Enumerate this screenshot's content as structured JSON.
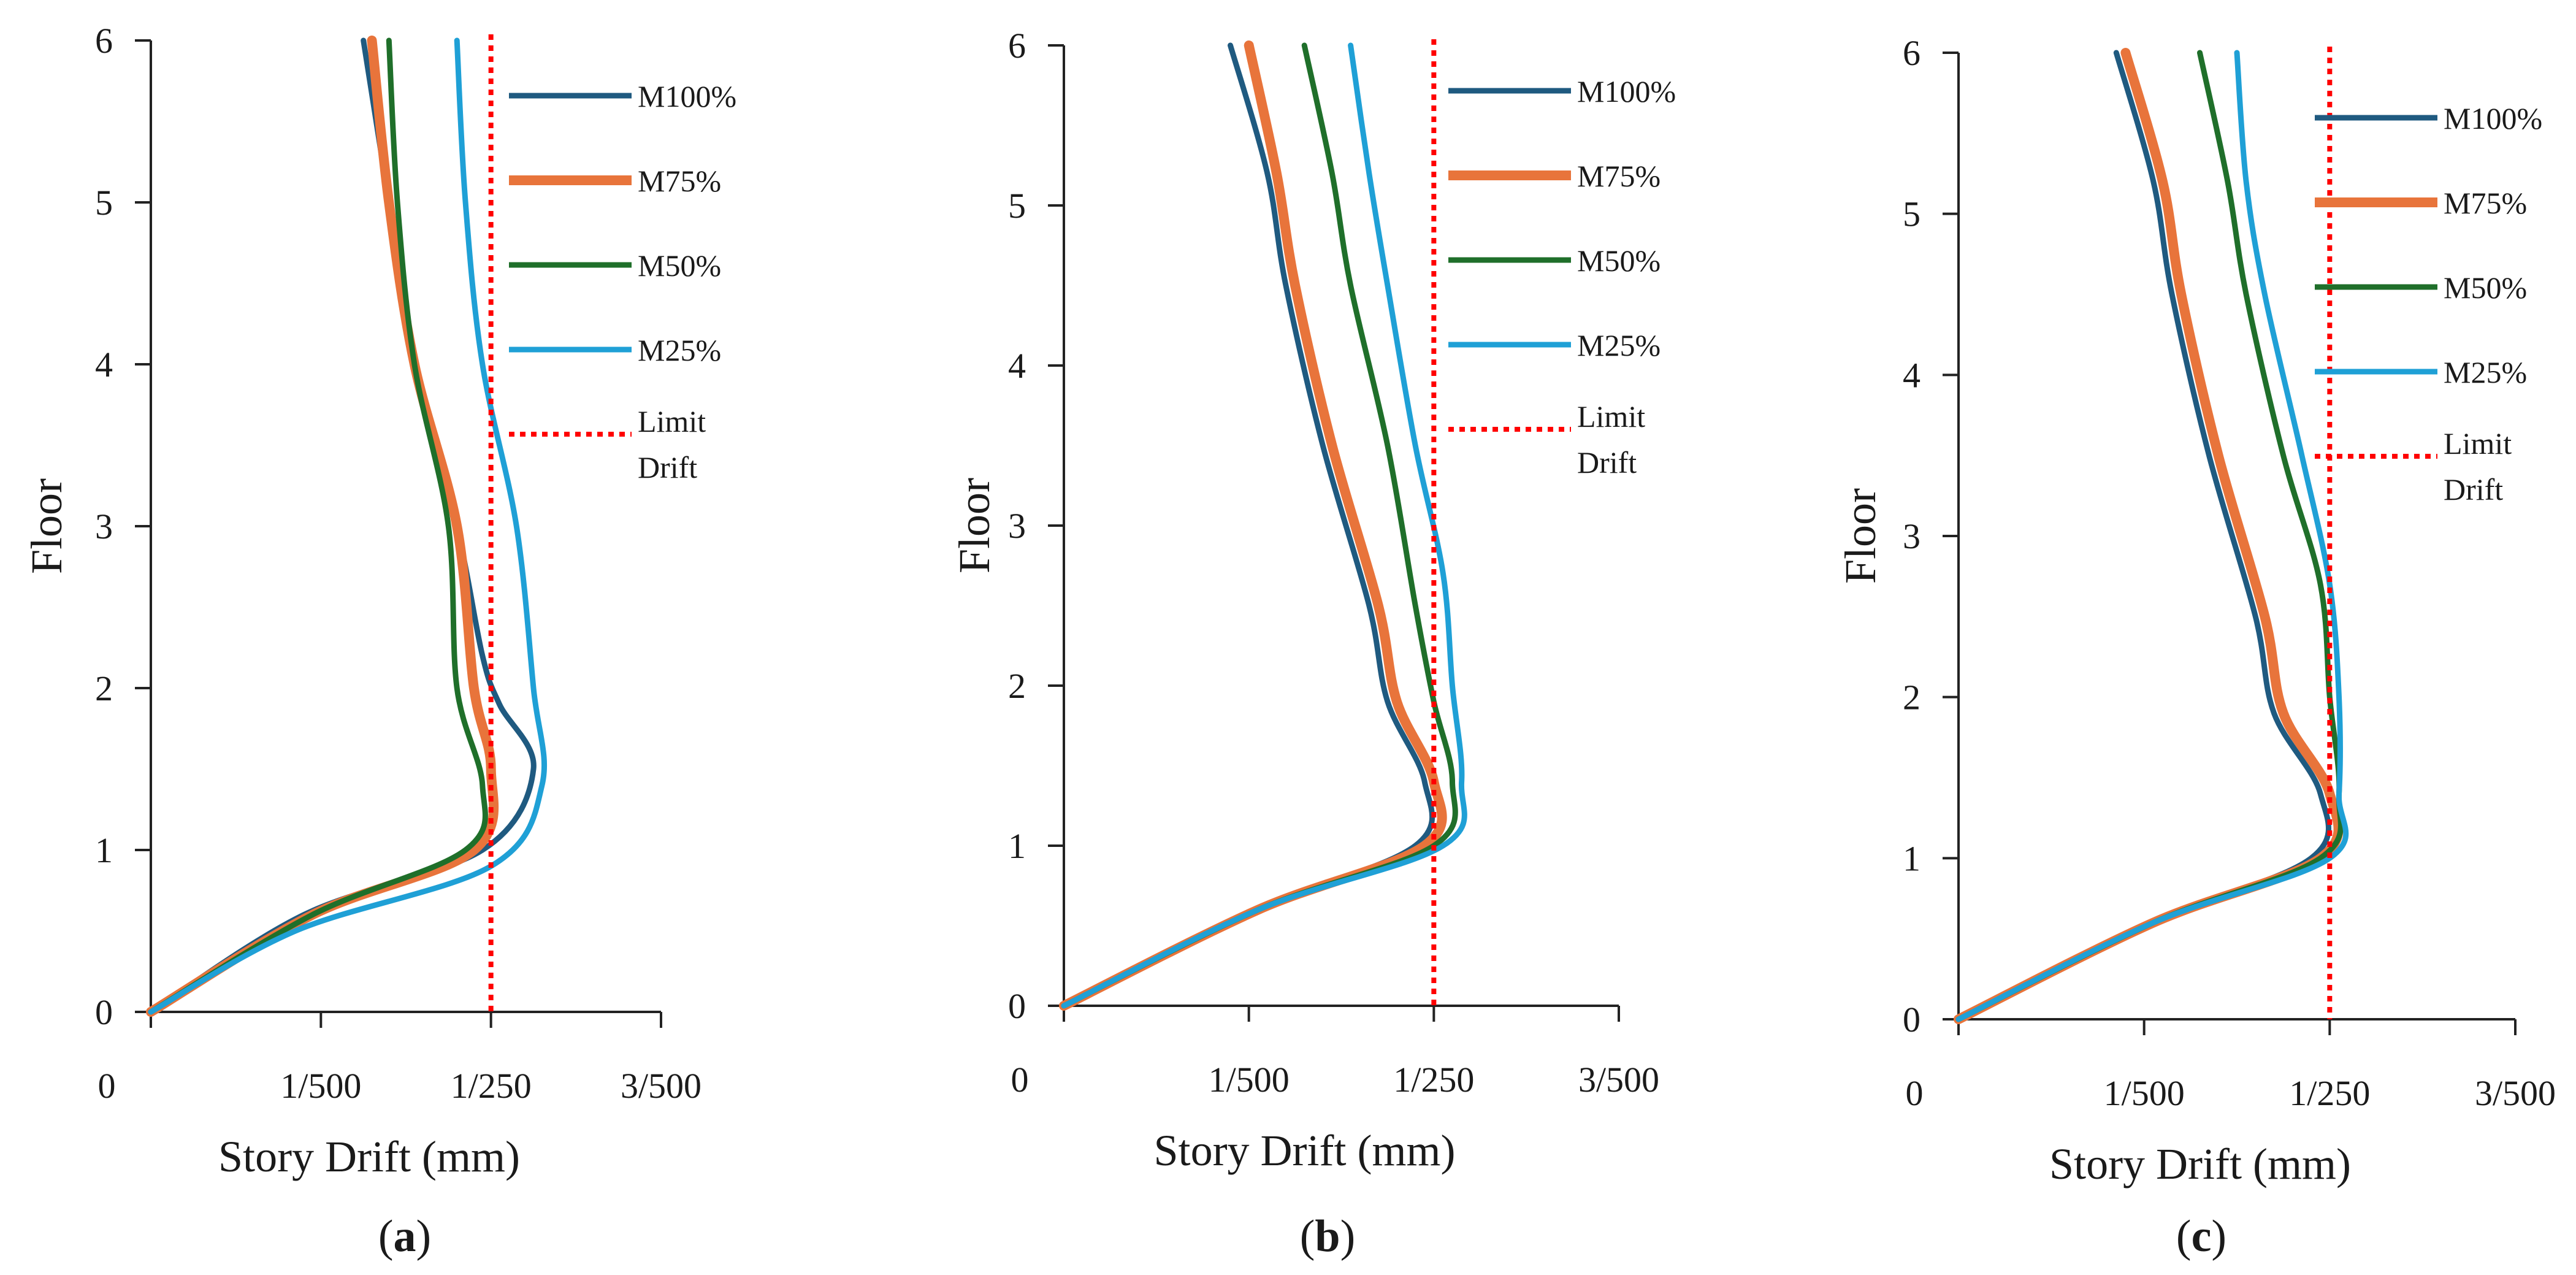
{
  "chart_data": [
    {
      "type": "line",
      "panel": "a",
      "caption": {
        "open": "(",
        "letter": "a",
        "close": ")"
      },
      "xlabel": "Story Drift (mm)",
      "ylabel": "Floor",
      "xlim": [
        0,
        0.006
      ],
      "ylim": [
        0,
        6
      ],
      "x_ticks": [
        0,
        0.002,
        0.004,
        0.006
      ],
      "x_tick_labels": [
        "0",
        "1/500",
        "1/250",
        "3/500"
      ],
      "y_ticks": [
        0,
        1,
        2,
        3,
        4,
        5,
        6
      ],
      "y_tick_labels": [
        "0",
        "1",
        "2",
        "3",
        "4",
        "5",
        "6"
      ],
      "grid": false,
      "legend_position": "right",
      "limit_drift": {
        "name": "Limit Drift",
        "name_lines": [
          "Limit",
          "Drift"
        ],
        "x": 0.004,
        "color": "#ff0000",
        "style": "dotted"
      },
      "series": [
        {
          "name": "M100%",
          "color": "#1f5a80",
          "width": 9,
          "points": [
            [
              0,
              0
            ],
            [
              0.0018,
              0.6
            ],
            [
              0.0039,
              1.0
            ],
            [
              0.0045,
              1.5
            ],
            [
              0.0041,
              1.9
            ],
            [
              0.0039,
              2.2
            ],
            [
              0.0036,
              3.0
            ],
            [
              0.0031,
              4.0
            ],
            [
              0.0028,
              5.0
            ],
            [
              0.0025,
              6.0
            ]
          ]
        },
        {
          "name": "M75%",
          "color": "#e8743b",
          "width": 16,
          "points": [
            [
              0,
              0
            ],
            [
              0.0019,
              0.6
            ],
            [
              0.0038,
              1.0
            ],
            [
              0.004,
              1.5
            ],
            [
              0.0038,
              2.0
            ],
            [
              0.0036,
              3.0
            ],
            [
              0.0031,
              4.0
            ],
            [
              0.0028,
              5.0
            ],
            [
              0.0026,
              6.0
            ]
          ]
        },
        {
          "name": "M50%",
          "color": "#1f6f2a",
          "width": 9,
          "points": [
            [
              0,
              0
            ],
            [
              0.0019,
              0.6
            ],
            [
              0.0037,
              1.0
            ],
            [
              0.0039,
              1.4
            ],
            [
              0.0036,
              2.0
            ],
            [
              0.0035,
              3.0
            ],
            [
              0.0031,
              4.0
            ],
            [
              0.0029,
              5.0
            ],
            [
              0.0028,
              6.0
            ]
          ]
        },
        {
          "name": "M25%",
          "color": "#1fa0d6",
          "width": 9,
          "points": [
            [
              0,
              0
            ],
            [
              0.0017,
              0.5
            ],
            [
              0.004,
              0.9
            ],
            [
              0.0046,
              1.4
            ],
            [
              0.0045,
              2.0
            ],
            [
              0.0043,
              3.0
            ],
            [
              0.0039,
              4.0
            ],
            [
              0.0037,
              5.0
            ],
            [
              0.0036,
              6.0
            ]
          ]
        }
      ]
    },
    {
      "type": "line",
      "panel": "b",
      "caption": {
        "open": "(",
        "letter": "b",
        "close": ")"
      },
      "xlabel": "Story Drift (mm)",
      "ylabel": "Floor",
      "xlim": [
        0,
        0.006
      ],
      "ylim": [
        0,
        6
      ],
      "x_ticks": [
        0,
        0.002,
        0.004,
        0.006
      ],
      "x_tick_labels": [
        "0",
        "1/500",
        "1/250",
        "3/500"
      ],
      "y_ticks": [
        0,
        1,
        2,
        3,
        4,
        5,
        6
      ],
      "y_tick_labels": [
        "0",
        "1",
        "2",
        "3",
        "4",
        "5",
        "6"
      ],
      "grid": false,
      "legend_position": "right",
      "limit_drift": {
        "name": "Limit Drift",
        "name_lines": [
          "Limit",
          "Drift"
        ],
        "x": 0.004,
        "color": "#ff0000",
        "style": "dotted"
      },
      "series": [
        {
          "name": "M100%",
          "color": "#1f5a80",
          "width": 9,
          "points": [
            [
              0,
              0
            ],
            [
              0.0021,
              0.6
            ],
            [
              0.0038,
              1.0
            ],
            [
              0.0039,
              1.4
            ],
            [
              0.0035,
              1.9
            ],
            [
              0.0033,
              2.5
            ],
            [
              0.0028,
              3.5
            ],
            [
              0.0024,
              4.5
            ],
            [
              0.0022,
              5.2
            ],
            [
              0.0018,
              6.0
            ]
          ]
        },
        {
          "name": "M75%",
          "color": "#e8743b",
          "width": 16,
          "points": [
            [
              0,
              0
            ],
            [
              0.0021,
              0.6
            ],
            [
              0.0039,
              1.0
            ],
            [
              0.004,
              1.4
            ],
            [
              0.0036,
              1.9
            ],
            [
              0.0034,
              2.5
            ],
            [
              0.0029,
              3.5
            ],
            [
              0.0025,
              4.5
            ],
            [
              0.0023,
              5.2
            ],
            [
              0.002,
              6.0
            ]
          ]
        },
        {
          "name": "M50%",
          "color": "#1f6f2a",
          "width": 9,
          "points": [
            [
              0,
              0
            ],
            [
              0.0021,
              0.6
            ],
            [
              0.004,
              1.0
            ],
            [
              0.0042,
              1.4
            ],
            [
              0.004,
              1.9
            ],
            [
              0.0038,
              2.5
            ],
            [
              0.0035,
              3.5
            ],
            [
              0.0031,
              4.5
            ],
            [
              0.0029,
              5.2
            ],
            [
              0.0026,
              6.0
            ]
          ]
        },
        {
          "name": "M25%",
          "color": "#1fa0d6",
          "width": 9,
          "points": [
            [
              0,
              0
            ],
            [
              0.0021,
              0.6
            ],
            [
              0.0041,
              1.0
            ],
            [
              0.0043,
              1.4
            ],
            [
              0.0042,
              2.0
            ],
            [
              0.0041,
              2.7
            ],
            [
              0.0038,
              3.5
            ],
            [
              0.0035,
              4.5
            ],
            [
              0.0033,
              5.2
            ],
            [
              0.0031,
              6.0
            ]
          ]
        }
      ]
    },
    {
      "type": "line",
      "panel": "c",
      "caption": {
        "open": "(",
        "letter": "c",
        "close": ")"
      },
      "xlabel": "Story Drift (mm)",
      "ylabel": "Floor",
      "xlim": [
        0,
        0.006
      ],
      "ylim": [
        0,
        6
      ],
      "x_ticks": [
        0,
        0.002,
        0.004,
        0.006
      ],
      "x_tick_labels": [
        "0",
        "1/500",
        "1/250",
        "3/500"
      ],
      "y_ticks": [
        0,
        1,
        2,
        3,
        4,
        5,
        6
      ],
      "y_tick_labels": [
        "0",
        "1",
        "2",
        "3",
        "4",
        "5",
        "6"
      ],
      "grid": false,
      "legend_position": "right",
      "limit_drift": {
        "name": "Limit Drift",
        "name_lines": [
          "Limit",
          "Drift"
        ],
        "x": 0.004,
        "color": "#ff0000",
        "style": "dotted"
      },
      "series": [
        {
          "name": "M100%",
          "color": "#1f5a80",
          "width": 9,
          "points": [
            [
              0,
              0
            ],
            [
              0.0021,
              0.6
            ],
            [
              0.0038,
              1.0
            ],
            [
              0.0039,
              1.4
            ],
            [
              0.0034,
              1.9
            ],
            [
              0.0032,
              2.5
            ],
            [
              0.0027,
              3.5
            ],
            [
              0.0023,
              4.5
            ],
            [
              0.0021,
              5.2
            ],
            [
              0.0017,
              6.0
            ]
          ]
        },
        {
          "name": "M75%",
          "color": "#e8743b",
          "width": 16,
          "points": [
            [
              0,
              0
            ],
            [
              0.0021,
              0.6
            ],
            [
              0.0039,
              1.0
            ],
            [
              0.004,
              1.4
            ],
            [
              0.0035,
              1.9
            ],
            [
              0.0033,
              2.5
            ],
            [
              0.0028,
              3.5
            ],
            [
              0.0024,
              4.5
            ],
            [
              0.0022,
              5.2
            ],
            [
              0.0018,
              6.0
            ]
          ]
        },
        {
          "name": "M50%",
          "color": "#1f6f2a",
          "width": 9,
          "points": [
            [
              0,
              0
            ],
            [
              0.0021,
              0.6
            ],
            [
              0.0039,
              1.0
            ],
            [
              0.0041,
              1.4
            ],
            [
              0.004,
              2.0
            ],
            [
              0.0039,
              2.7
            ],
            [
              0.0035,
              3.5
            ],
            [
              0.0031,
              4.5
            ],
            [
              0.0029,
              5.2
            ],
            [
              0.0026,
              6.0
            ]
          ]
        },
        {
          "name": "M25%",
          "color": "#1fa0d6",
          "width": 9,
          "points": [
            [
              0,
              0
            ],
            [
              0.0021,
              0.6
            ],
            [
              0.004,
              1.0
            ],
            [
              0.0041,
              1.4
            ],
            [
              0.0041,
              2.0
            ],
            [
              0.004,
              2.7
            ],
            [
              0.0037,
              3.5
            ],
            [
              0.0033,
              4.5
            ],
            [
              0.0031,
              5.2
            ],
            [
              0.003,
              6.0
            ]
          ]
        }
      ]
    }
  ]
}
